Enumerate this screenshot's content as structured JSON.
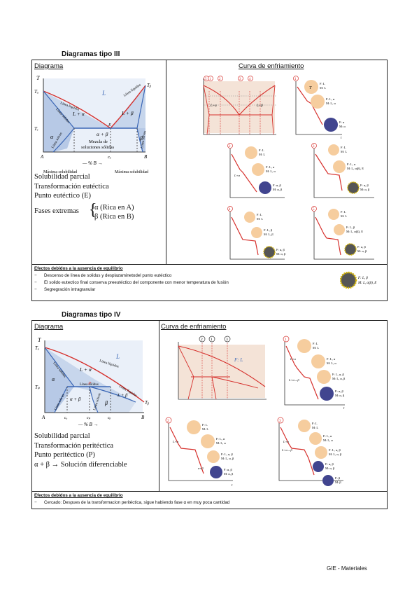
{
  "section3": {
    "title": "Diagramas tipo III",
    "diagram_header": "Diagrama",
    "curve_header": "Curva de enfriamiento",
    "diagram_labels": {
      "T": "T",
      "TA": "Tₐ",
      "TB": "Tᵦ",
      "TE": "Tₑ",
      "L": "L",
      "L_alpha": "L + α",
      "L_beta": "L + β",
      "alpha": "α",
      "beta": "β",
      "alpha_beta": "α + β",
      "mezcla1": "Mezcla de",
      "mezcla2": "soluciones sólidas",
      "E": "E",
      "cE": "cₑ",
      "A": "A",
      "B": "B",
      "axis": "— % B →",
      "liquidus_left": "Línea líquidus",
      "liquidus_right": "Línea líquidus",
      "solidus": "Línea sólidus",
      "solvus_left": "Línea solvus",
      "solvus_right": "Línea solvus",
      "max_sol_left": "Máxima solubilidad",
      "max_sol_right": "Máxima solubilidad"
    },
    "props": [
      "Solubilidad parcial",
      "Transformación eutéctica",
      "Punto eutéctico (E)"
    ],
    "fases_label": "Fases extremas",
    "fases_items": [
      "α (Rica en A)",
      "β (Rica en B)"
    ],
    "effects_title": "Efectos debidos a la ausencia de equilibrio",
    "effects": [
      "Descenso de linea de solidus y desplazaminetodel punto eutéctico",
      "El solido eutectico final conserva preeutéctico del componente con menor temperatura de fusión",
      "Segregración intragranular"
    ],
    "effects_circle_text1": "F: L, β",
    "effects_circle_text2": "M: L, α(β), E",
    "curve_labels": {
      "nums": [
        "1",
        "2",
        "3",
        "4",
        "5"
      ],
      "F_L": "F: L",
      "M_L": "M: L",
      "F_La": "F: L, α",
      "M_La": "M: L, α",
      "F_a": "F: α",
      "M_a": "M: α",
      "F_ab": "F: α, β",
      "M_ab": "M: α, β",
      "F_Lb": "F: L, β",
      "M_Lb": "M: L, β",
      "M_Lab": "M: L, α(β), E",
      "t": "t",
      "T": "T",
      "La": "L+α",
      "Lb": "L+β"
    }
  },
  "section4": {
    "title": "Diagramas tipo IV",
    "diagram_header": "Diagrama",
    "curve_header": "Curva de enfriamiento",
    "diagram_labels": {
      "T": "T",
      "TA": "Tₐ",
      "TB": "Tᵦ",
      "TP": "Tₚ",
      "L": "L",
      "L_alpha": "L + α",
      "L_beta": "L + β",
      "alpha": "α",
      "beta": "β",
      "alpha_beta": "α + β",
      "P": "P",
      "A": "A",
      "B": "B",
      "c_alpha": "cₐ",
      "cP": "cₚ",
      "c_beta": "cᵦ",
      "axis": "— % B →",
      "liquidus_top": "Línea líquidus",
      "liquidus_right": "Línea líquidus",
      "solidus": "Línea sólidus",
      "solidus_inner": "Línea sólidus",
      "solvus_left": "Línea solvus",
      "solvus_right": "Línea solvus"
    },
    "props": [
      "Solubilidad parcial",
      "Transformación peritéctica",
      "Punto peritéctico (P)",
      "α + β → Solución diferenciable"
    ],
    "effects_title": "Efectos debidos a la ausencia de equilibrio",
    "effects": [
      "Cercado: Despues de la transformacion peritéctica, sigue habiendo fase α en muy poca cantidad"
    ],
    "curve_labels": {
      "nums": [
        "1",
        "2",
        "3"
      ],
      "F_L": "F: L",
      "M_L": "M: L",
      "F_La": "F: L, α",
      "M_La": "M: L, α",
      "F_Lab": "F: L, α, β",
      "M_Lab": "M: L, α, β",
      "F_ab": "F: α, β",
      "M_ab": "M: α, β",
      "F_b": "F: β",
      "M_b": "M: β",
      "La": "L+α",
      "Lab": "L+α→β",
      "ab": "α+β",
      "t": "t",
      "T": "T"
    }
  },
  "footer": "GIE - Materiales",
  "colors": {
    "red": "#d6302c",
    "blue": "#3a66b5",
    "light_blue": "#c7d6ec",
    "peach": "#f6cd9e",
    "navy": "#41458f",
    "grey": "#444444"
  }
}
